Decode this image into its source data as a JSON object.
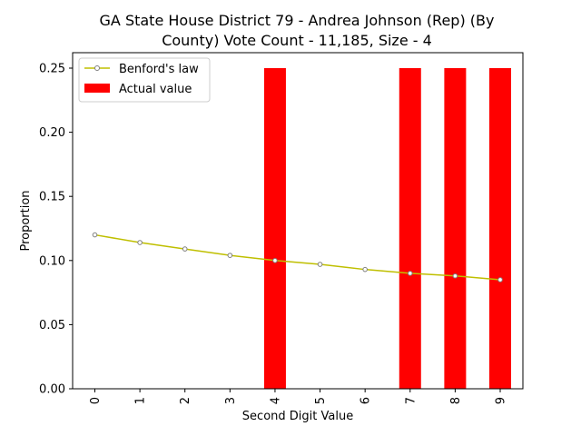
{
  "chart_data": {
    "type": "bar",
    "title_line1": "GA State House District 79 - Andrea Johnson (Rep) (By",
    "title_line2": "County) Vote Count - 11,185, Size - 4",
    "xlabel": "Second Digit Value",
    "ylabel": "Proportion",
    "categories": [
      "0",
      "1",
      "2",
      "3",
      "4",
      "5",
      "6",
      "7",
      "8",
      "9"
    ],
    "ylim": [
      0,
      0.25
    ],
    "yticks": [
      "0.00",
      "0.05",
      "0.10",
      "0.15",
      "0.20",
      "0.25"
    ],
    "series": [
      {
        "name": "Actual value",
        "kind": "bar",
        "color": "#ff0000",
        "values": [
          0,
          0,
          0,
          0,
          0.25,
          0,
          0,
          0.25,
          0.25,
          0.25
        ]
      },
      {
        "name": "Benford's law",
        "kind": "line",
        "color": "#bfbf00",
        "marker_color": "#7f7f7f",
        "values": [
          0.12,
          0.114,
          0.109,
          0.104,
          0.1,
          0.097,
          0.093,
          0.09,
          0.088,
          0.085
        ]
      }
    ],
    "legend": {
      "position": "top-left",
      "entries": [
        "Benford's law",
        "Actual value"
      ]
    }
  }
}
